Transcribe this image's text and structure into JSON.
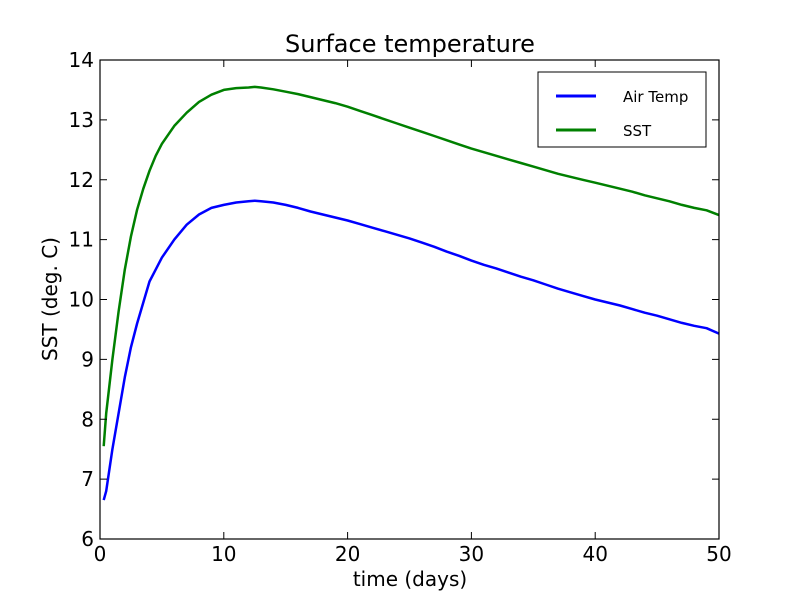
{
  "chart_data": {
    "type": "line",
    "title": "Surface temperature",
    "xlabel": "time (days)",
    "ylabel": "SST (deg. C)",
    "xlim": [
      0,
      50
    ],
    "ylim": [
      6,
      14
    ],
    "xticks": [
      0,
      10,
      20,
      30,
      40,
      50
    ],
    "yticks": [
      6,
      7,
      8,
      9,
      10,
      11,
      12,
      13,
      14
    ],
    "grid": false,
    "legend_position": "top-right",
    "series": [
      {
        "name": "Air Temp",
        "color": "#0000ff",
        "x": [
          0.3,
          0.5,
          1,
          1.5,
          2,
          2.5,
          3,
          3.5,
          4,
          4.5,
          5,
          6,
          7,
          8,
          9,
          10,
          11,
          12,
          12.5,
          13,
          14,
          15,
          16,
          17,
          18,
          19,
          20,
          21,
          22,
          23,
          24,
          25,
          26,
          27,
          28,
          29,
          30,
          31,
          32,
          33,
          34,
          35,
          36,
          37,
          38,
          39,
          40,
          41,
          42,
          43,
          44,
          45,
          46,
          47,
          48,
          49,
          50
        ],
        "y": [
          6.65,
          6.8,
          7.5,
          8.1,
          8.7,
          9.2,
          9.6,
          9.95,
          10.3,
          10.5,
          10.7,
          11.0,
          11.25,
          11.42,
          11.53,
          11.58,
          11.62,
          11.64,
          11.65,
          11.64,
          11.62,
          11.58,
          11.53,
          11.47,
          11.42,
          11.37,
          11.32,
          11.26,
          11.2,
          11.14,
          11.08,
          11.02,
          10.95,
          10.88,
          10.8,
          10.73,
          10.65,
          10.58,
          10.52,
          10.45,
          10.38,
          10.32,
          10.25,
          10.18,
          10.12,
          10.06,
          10.0,
          9.95,
          9.9,
          9.84,
          9.78,
          9.73,
          9.67,
          9.61,
          9.56,
          9.52,
          9.43
        ]
      },
      {
        "name": "SST",
        "color": "#008000",
        "x": [
          0.3,
          0.5,
          1,
          1.5,
          2,
          2.5,
          3,
          3.5,
          4,
          4.5,
          5,
          6,
          7,
          8,
          9,
          10,
          11,
          12,
          12.5,
          13,
          14,
          15,
          16,
          17,
          18,
          19,
          20,
          21,
          22,
          23,
          24,
          25,
          26,
          27,
          28,
          29,
          30,
          31,
          32,
          33,
          34,
          35,
          36,
          37,
          38,
          39,
          40,
          41,
          42,
          43,
          44,
          45,
          46,
          47,
          48,
          49,
          50
        ],
        "y": [
          7.55,
          8.1,
          9.0,
          9.8,
          10.5,
          11.05,
          11.5,
          11.85,
          12.15,
          12.4,
          12.6,
          12.9,
          13.12,
          13.3,
          13.42,
          13.5,
          13.53,
          13.54,
          13.55,
          13.54,
          13.51,
          13.47,
          13.43,
          13.38,
          13.33,
          13.28,
          13.22,
          13.15,
          13.08,
          13.01,
          12.94,
          12.87,
          12.8,
          12.73,
          12.66,
          12.59,
          12.52,
          12.46,
          12.4,
          12.34,
          12.28,
          12.22,
          12.16,
          12.1,
          12.05,
          12.0,
          11.95,
          11.9,
          11.85,
          11.8,
          11.74,
          11.69,
          11.64,
          11.58,
          11.53,
          11.49,
          11.41
        ]
      }
    ]
  }
}
